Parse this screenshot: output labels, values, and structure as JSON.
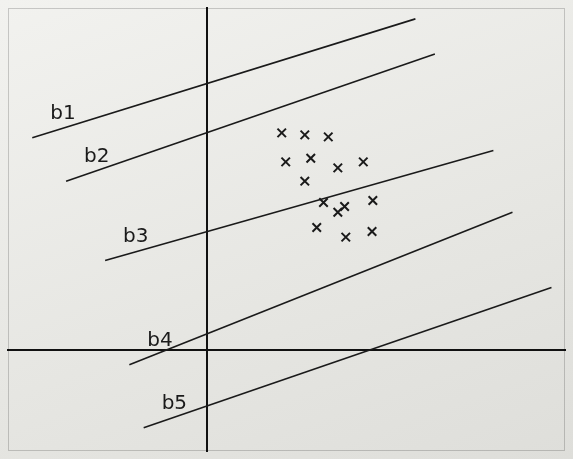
{
  "chart_data": {
    "type": "scatter",
    "xlim": [
      -5,
      9
    ],
    "ylim": [
      -2.5,
      8.5
    ],
    "grid": false,
    "tick_labels": false,
    "series": [
      {
        "type": "scatter",
        "marker": "x",
        "color": "#1a1a1a",
        "x": [
          1.88,
          2.46,
          3.05,
          1.98,
          2.61,
          3.29,
          3.93,
          2.46,
          2.93,
          3.46,
          4.17,
          3.29,
          2.76,
          3.49,
          4.15
        ],
        "values": [
          5.4,
          5.35,
          5.3,
          4.68,
          4.77,
          4.53,
          4.68,
          4.2,
          3.67,
          3.57,
          3.72,
          3.43,
          3.05,
          2.81,
          2.95
        ]
      },
      {
        "name": "b1",
        "type": "line",
        "color": "#1a1a1a",
        "x": [
          -4.39,
          5.24
        ],
        "values": [
          5.28,
          8.23
        ]
      },
      {
        "name": "b2",
        "type": "line",
        "color": "#1a1a1a",
        "x": [
          -3.54,
          5.73
        ],
        "values": [
          4.2,
          7.36
        ]
      },
      {
        "name": "b3",
        "type": "line",
        "color": "#1a1a1a",
        "x": [
          -2.56,
          7.2
        ],
        "values": [
          2.23,
          4.96
        ]
      },
      {
        "name": "b4",
        "type": "line",
        "color": "#1a1a1a",
        "x": [
          -1.95,
          7.68
        ],
        "values": [
          -0.36,
          3.43
        ]
      },
      {
        "name": "b5",
        "type": "line",
        "color": "#1a1a1a",
        "x": [
          -1.59,
          8.66
        ],
        "values": [
          -1.92,
          1.56
        ]
      }
    ]
  }
}
